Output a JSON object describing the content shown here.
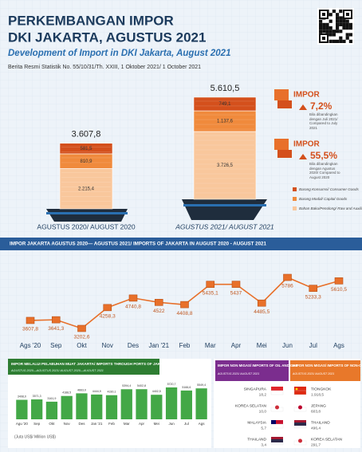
{
  "header": {
    "title_line1": "PERKEMBANGAN IMPOR",
    "title_line2": "DKI JAKARTA, AGUSTUS 2021",
    "subtitle": "Development of Import in DKI Jakarta, August 2021",
    "release": "Berita Resmi Statistik No. 55/10/31/Th. XXIII, 1 Oktober 2021/ 1 October 2021"
  },
  "chart_data": [
    {
      "type": "stacked_bar",
      "categories": [
        "AGUSTUS 2020/ AUGUST 2020",
        "AGUSTUS 2021/ AUGUST 2021"
      ],
      "totals": [
        3607.8,
        5610.5
      ],
      "total_labels": [
        "3.607,8",
        "5.610,5"
      ],
      "series": [
        {
          "name": "Bahan Baku/Penolong/ Raw and Auxiliary Materials",
          "color": "#f9c79c",
          "values": [
            2215.4,
            3726.5
          ],
          "value_labels": [
            "2.215,4",
            "3.726,5"
          ]
        },
        {
          "name": "Barang Modal/ Capital Goods",
          "color": "#f08a3c",
          "values": [
            810.9,
            1137.6
          ],
          "value_labels": [
            "810,9",
            "1.137,6"
          ]
        },
        {
          "name": "Barang Konsumsi/ Consumer Goods",
          "color": "#d4501c",
          "values": [
            581.5,
            749.1
          ],
          "value_labels": [
            "581,5",
            "749,1"
          ]
        }
      ]
    },
    {
      "type": "line",
      "title": "IMPOR JAKARTA AGUSTUS 2020— AGUSTUS 2021/ IMPORTS OF JAKARTA IN AUGUST 2020 - AUGUST 2021",
      "categories": [
        "Ags '20",
        "Sep",
        "Okt",
        "Nov",
        "Des",
        "Jan '21",
        "Feb",
        "Mar",
        "Apr",
        "Mei",
        "Jun",
        "Jul",
        "Ags"
      ],
      "values": [
        3607.8,
        3641.3,
        3202.6,
        4258.3,
        4740.8,
        4522,
        4408.8,
        5435.1,
        5437,
        4485.5,
        5786,
        5233.3,
        5610.5
      ],
      "value_labels": [
        "3607,8",
        "3641,3",
        "3202,6",
        "4258,3",
        "4740,8",
        "4522",
        "4408,8",
        "5435,1",
        "5437",
        "4485,5",
        "5786",
        "5233,3",
        "5610,5"
      ],
      "color": "#e8702a"
    },
    {
      "type": "bar",
      "title": "IMPOR MELALUI PELABUHAN MUAT JAKARTA/ IMPORTS THROUGH PORTS OF JAKARTA",
      "subtitle": "AGUSTUS 2020—AGUSTUS 2021/ AUGUST 2020—AUGUST 2021",
      "note": "(Juta US$/ Million US$)",
      "categories": [
        "Agu '20",
        "Sep",
        "Okt",
        "Nov",
        "Des",
        "Jan '21",
        "Feb",
        "Mar",
        "Apr",
        "Mei",
        "Jun",
        "Jul",
        "Ags"
      ],
      "values": [
        3498.0,
        3571.3,
        3161.9,
        4188.5,
        4663.0,
        4444.9,
        4330.1,
        5394.4,
        5402.8,
        4402.5,
        5720.7,
        5166.6,
        5549.4
      ],
      "value_labels": [
        "3498,0",
        "3571,3",
        "3161,9",
        "4188,5",
        "4663,0",
        "4444,9",
        "4330,1",
        "5394,4",
        "5402,8",
        "4402,5",
        "5720,7",
        "5166,6",
        "5549,4"
      ],
      "color": "#43a847"
    }
  ],
  "highlights": [
    {
      "label": "IMPOR",
      "change": "7,2%",
      "note": "Bila dibandingkan dengan Juli 2021/ Compared to July 2021"
    },
    {
      "label": "IMPOR",
      "change": "55,5%",
      "note": "Bila dibandingkan dengan Agustus 2020/ Compared to August 2020"
    }
  ],
  "oil_gas": {
    "title": "IMPOR NON MIGAS/ IMPORTS OF OIL AND GAS",
    "period": "AGUSTUS 2021/ AUGUST 2021",
    "countries": [
      {
        "name": "SINGAPURA",
        "value": "18,2"
      },
      {
        "name": "KOREA SELATAN",
        "value": "10,0"
      },
      {
        "name": "MALAYSIA",
        "value": "5,7"
      },
      {
        "name": "THAILAND",
        "value": "3,4"
      }
    ]
  },
  "non_oil_gas": {
    "title": "IMPOR NON MIGAS/ IMPORTS OF NON-OIL AND GAS",
    "period": "AGUSTUS 2021/ AUGUST 2021",
    "countries": [
      {
        "name": "TIONGKOK",
        "value": "1.918,5"
      },
      {
        "name": "JEPANG",
        "value": "603,8"
      },
      {
        "name": "THAILAND",
        "value": "496,4"
      },
      {
        "name": "KOREA SELATAN",
        "value": "291,7"
      }
    ]
  }
}
